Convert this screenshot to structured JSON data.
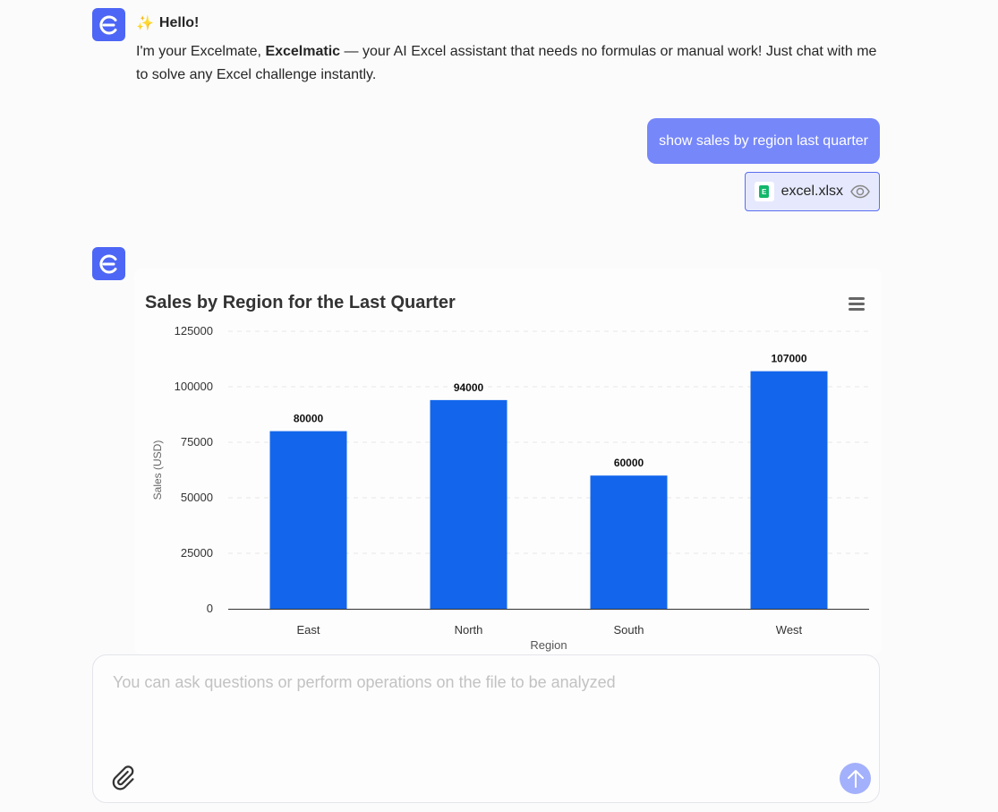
{
  "assistant": {
    "greeting_emoji": "✨",
    "greeting": "Hello!",
    "intro_prefix": "I'm your Excelmate, ",
    "intro_bold": "Excelmatic",
    "intro_suffix": " — your AI Excel assistant that needs no formulas or manual work! Just chat with me to solve any Excel challenge instantly."
  },
  "user": {
    "message": "show sales by region last quarter",
    "attachment": "excel.xlsx"
  },
  "colors": {
    "accent": "#4d66f5",
    "bar": "#1366ec",
    "user_bubble": "#7687fa"
  },
  "chart_data": {
    "type": "bar",
    "title": "Sales by Region for the Last Quarter",
    "xlabel": "Region",
    "ylabel": "Sales (USD)",
    "categories": [
      "East",
      "North",
      "South",
      "West"
    ],
    "values": [
      80000,
      94000,
      60000,
      107000
    ],
    "ylim": [
      0,
      125000
    ],
    "yticks": [
      "0",
      "25000",
      "50000",
      "75000",
      "100000",
      "125000"
    ],
    "grid": true,
    "data_labels": true
  },
  "input": {
    "placeholder": "You can ask questions or perform operations on the file to be analyzed"
  }
}
